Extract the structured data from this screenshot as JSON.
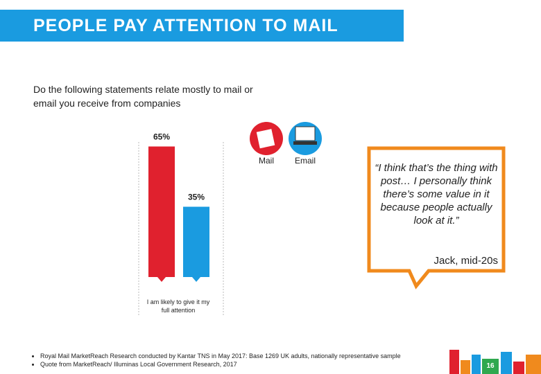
{
  "header": {
    "title": "PEOPLE PAY ATTENTION TO MAIL"
  },
  "question": "Do the following statements relate mostly to mail or email you receive from companies",
  "chart_data": {
    "type": "bar",
    "categories": [
      "I am likely to give it my full attention"
    ],
    "series": [
      {
        "name": "Mail",
        "color": "#e0212e",
        "values": [
          65
        ],
        "value_labels": [
          "65%"
        ]
      },
      {
        "name": "Email",
        "color": "#1a9be0",
        "values": [
          35
        ],
        "value_labels": [
          "35%"
        ]
      }
    ],
    "ylim": [
      0,
      70
    ]
  },
  "quote": {
    "text": "“I think that’s the thing with post… I personally think there’s some value in it because people actually look at it.”",
    "attribution": "Jack, mid-20s"
  },
  "footnotes": [
    "Royal Mail MarketReach Research conducted by Kantar TNS in May 2017: Base 1269 UK adults, nationally representative sample",
    "Quote from MarketReach/ Illuminas Local Government Research, 2017"
  ],
  "page_number": "16"
}
